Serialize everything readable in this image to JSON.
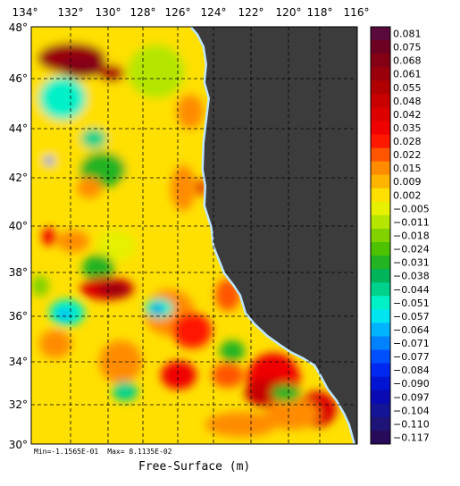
{
  "map": {
    "lon_labels": [
      "134°",
      "132°",
      "130°",
      "128°",
      "126°",
      "124°",
      "122°",
      "120°",
      "118°",
      "116°"
    ],
    "lat_labels": [
      "48°",
      "46°",
      "44°",
      "42°",
      "40°",
      "38°",
      "36°",
      "34°",
      "32°",
      "30°"
    ],
    "land_color": "#3c3c3c",
    "coast_color": "#bfe6ff"
  },
  "stats": {
    "min_text": "Min=-1.1565E-01",
    "max_text": "Max= 8.1135E-02"
  },
  "variable_label": "Free-Surface (m)",
  "colorbar": {
    "levels": [
      "0.081",
      "0.075",
      "0.068",
      "0.061",
      "0.055",
      "0.048",
      "0.042",
      "0.035",
      "0.028",
      "0.022",
      "0.015",
      "0.009",
      "0.002",
      "-0.005",
      "-0.011",
      "-0.018",
      "-0.024",
      "-0.031",
      "-0.038",
      "-0.044",
      "-0.051",
      "-0.057",
      "-0.064",
      "-0.071",
      "-0.077",
      "-0.084",
      "-0.090",
      "-0.097",
      "-0.104",
      "-0.110",
      "-0.117"
    ],
    "colors": [
      "#5a0a3c",
      "#6e0022",
      "#840014",
      "#9a000c",
      "#b00000",
      "#c80000",
      "#dc0000",
      "#f00000",
      "#ff1800",
      "#ff5400",
      "#ff8c00",
      "#ffb400",
      "#ffe000",
      "#e6f000",
      "#b4e600",
      "#82d200",
      "#4cc200",
      "#22b422",
      "#00b45a",
      "#00d28c",
      "#00f0c8",
      "#00e6f0",
      "#00b4ff",
      "#0082ff",
      "#0050ff",
      "#0028f0",
      "#0014d2",
      "#0a0ab4",
      "#141496",
      "#1e1478",
      "#280a5a"
    ]
  }
}
